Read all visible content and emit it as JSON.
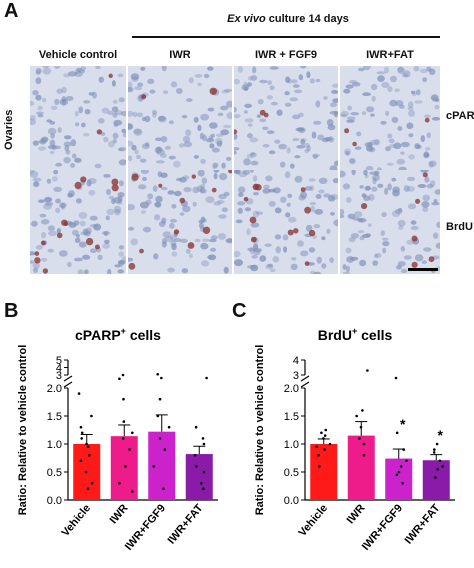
{
  "panel_labels": {
    "a": "A",
    "b": "B",
    "c": "C"
  },
  "micrograph": {
    "culture_header_italic": "Ex vivo",
    "culture_header_rest": " culture 14 days",
    "columns": [
      "Vehicle control",
      "IWR",
      "IWR + FGF9",
      "IWR+FAT"
    ],
    "row_labels": [
      "cPARP",
      "BrdU"
    ],
    "tissue_label": "Ovaries",
    "colors": {
      "background": "#d9deec",
      "nuclei": "#7f8fb8",
      "stain": "#8b3a3a"
    }
  },
  "chart_data": [
    {
      "type": "bar",
      "title_main": "cPARP",
      "title_sup": "+",
      "title_rest": " cells",
      "ylabel": "Ratio: Relative to vehicle control",
      "categories": [
        "Vehicle",
        "IWR",
        "IWR+FGF9",
        "IWR+FAT"
      ],
      "values": [
        1.0,
        1.14,
        1.22,
        0.82
      ],
      "errors": [
        0.17,
        0.2,
        0.3,
        0.14
      ],
      "colors": [
        "#ff1a1a",
        "#ee1c8a",
        "#cc22cc",
        "#8a1aa8"
      ],
      "ylim_lower": [
        0,
        2.0
      ],
      "ylim_upper": [
        3,
        5
      ],
      "yticks_lower": [
        "0.0",
        "0.5",
        "1.0",
        "1.5",
        "2.0"
      ],
      "yticks_upper": [
        "3",
        "4",
        "5"
      ],
      "broken_axis": true,
      "points": [
        [
          0.95,
          0.5,
          0.3,
          0.7,
          1.2,
          1.1,
          1.9,
          1.5,
          1.0,
          0.8,
          0.2,
          1.3
        ],
        [
          1.8,
          1.2,
          0.6,
          0.9,
          1.4,
          0.3,
          2.5,
          3.0,
          1.1,
          0.15
        ],
        [
          1.5,
          0.9,
          0.2,
          1.8,
          1.1,
          2.6,
          3.1,
          1.3,
          0.6
        ],
        [
          0.8,
          0.5,
          0.3,
          1.0,
          0.6,
          1.1,
          1.3,
          2.6,
          0.2
        ]
      ],
      "significance": [
        "",
        "",
        "",
        ""
      ]
    },
    {
      "type": "bar",
      "title_main": "BrdU",
      "title_sup": "+",
      "title_rest": " cells",
      "ylabel": "Ratio: Relative to vehicle control",
      "categories": [
        "Vehicle",
        "IWR",
        "IWR+FGF9",
        "IWR+FAT"
      ],
      "values": [
        1.0,
        1.15,
        0.74,
        0.71
      ],
      "errors": [
        0.09,
        0.25,
        0.17,
        0.1
      ],
      "colors": [
        "#ff1a1a",
        "#ee1c8a",
        "#cc22cc",
        "#8a1aa8"
      ],
      "ylim_lower": [
        0,
        2.0
      ],
      "ylim_upper": [
        3,
        4
      ],
      "yticks_lower": [
        "0.0",
        "0.5",
        "1.0",
        "1.5",
        "2.0"
      ],
      "yticks_upper": [
        "3",
        "4"
      ],
      "broken_axis": true,
      "points": [
        [
          1.2,
          0.9,
          0.8,
          1.1,
          1.0,
          0.6,
          1.25,
          0.95,
          1.15
        ],
        [
          1.5,
          1.3,
          1.0,
          0.8,
          1.6,
          3.3,
          1.1
        ],
        [
          0.3,
          0.6,
          0.9,
          1.2,
          0.45,
          2.8,
          0.7,
          0.5
        ],
        [
          0.9,
          0.6,
          0.4,
          0.85,
          1.0,
          0.55,
          0.7
        ]
      ],
      "significance": [
        "",
        "",
        "*",
        "*"
      ]
    }
  ]
}
